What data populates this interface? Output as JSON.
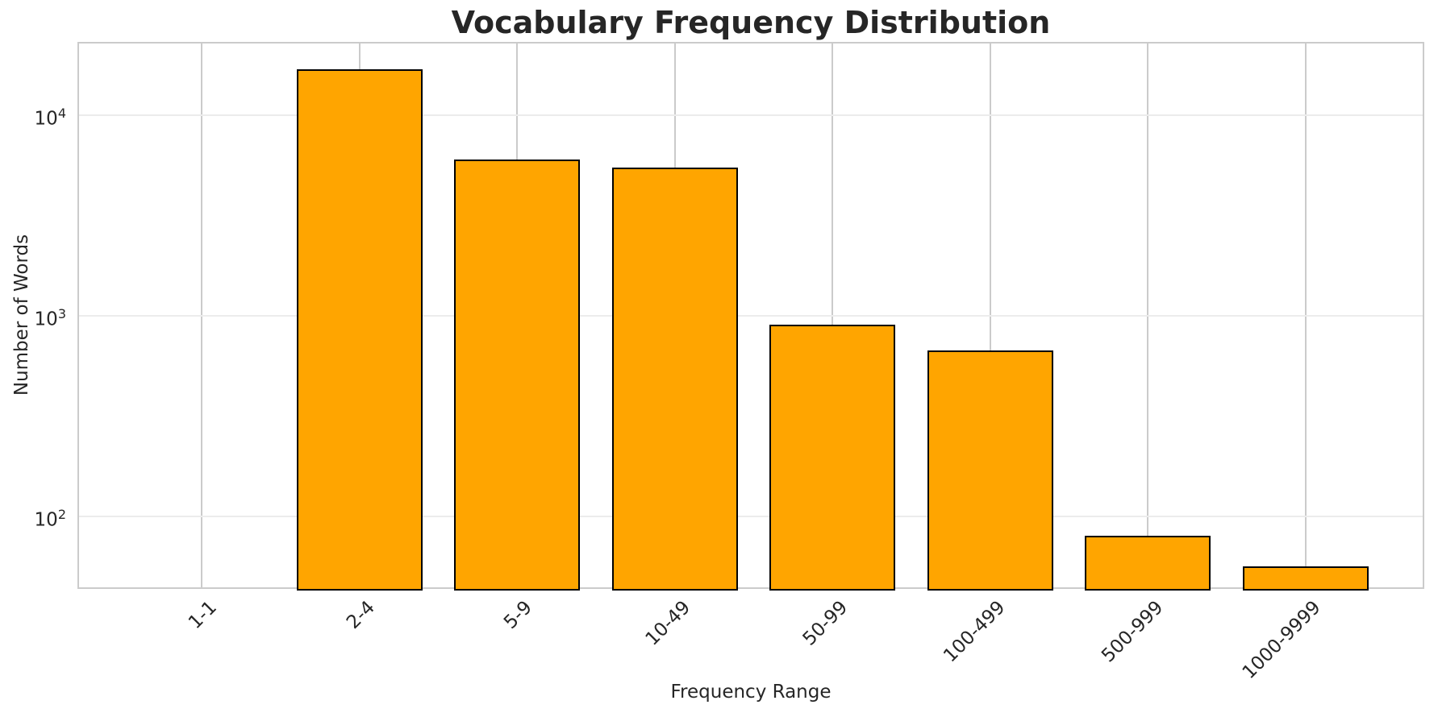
{
  "chart_data": {
    "type": "bar",
    "title": "Vocabulary Frequency Distribution",
    "xlabel": "Frequency Range",
    "ylabel": "Number of Words",
    "categories": [
      "1-1",
      "2-4",
      "5-9",
      "10-49",
      "50-99",
      "100-499",
      "500-999",
      "1000-9999"
    ],
    "values": [
      0,
      17000,
      6000,
      5500,
      900,
      670,
      80,
      56
    ],
    "yscale": "log",
    "ylim": [
      42,
      23000
    ],
    "yticks": [
      {
        "exponent": 2,
        "value": 100
      },
      {
        "exponent": 3,
        "value": 1000
      },
      {
        "exponent": 4,
        "value": 10000
      }
    ],
    "grid": true,
    "legend_position": "none",
    "xtick_rotation_deg": 45,
    "colors": {
      "bar_fill": "#FFA500",
      "bar_edge": "#000000",
      "grid_vertical": "#cbcbcb",
      "grid_horizontal": "#ececec",
      "axes_border": "#cbcbcb",
      "text": "#262626",
      "background": "#ffffff"
    }
  }
}
